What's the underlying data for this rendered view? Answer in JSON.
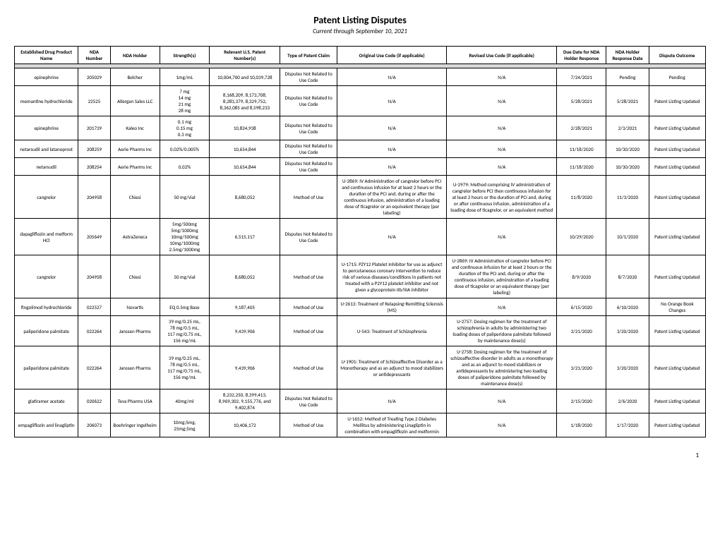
{
  "title": "Patent Listing Disputes",
  "subtitle": "Current through September 10, 2021",
  "pageNumber": "1",
  "columns": [
    "Established Drug Product Name",
    "NDA Number",
    "NDA Holder",
    "Strength(s)",
    "Relevant U.S. Patent Number(s)",
    "Type of Patent Claim",
    "Original Use Code (if applicable)",
    "Revised Use Code (if applicable)",
    "Due Date for NDA Holder Response",
    "NDA Holder Response Date",
    "Dispute Outcome"
  ],
  "rows": [
    {
      "drug": "epinephrine",
      "nda": "205029",
      "holder": "Belcher",
      "strength": "1mg/mL",
      "patent": "10,004,700 and 10,039,728",
      "claim": "Disputes Not Related to Use Code",
      "original": "N/A",
      "revised": "N/A",
      "due": "7/24/2021",
      "resp": "Pending",
      "outcome": "Pending"
    },
    {
      "drug": "memantine hydrochloride",
      "nda": "22525",
      "holder": "Allergan Sales LLC",
      "strength": "7 mg\n14 mg\n21 mg\n28 mg",
      "patent": "8,168,209, 8,173,708, 8,283,379, 8,329,752, 8,362,085 and 8,598,233",
      "claim": "Disputes Not Related to Use Code",
      "original": "N/A",
      "revised": "N/A",
      "due": "5/28/2021",
      "resp": "5/28/2021",
      "outcome": "Patent Listing Updated"
    },
    {
      "drug": "epinephrine",
      "nda": "201739",
      "holder": "Kaleo Inc",
      "strength": "0.1 mg\n0.15 mg\n0.3 mg",
      "patent": "10,824,938",
      "claim": "Disputes Not Related to Use Code",
      "original": "N/A",
      "revised": "N/A",
      "due": "2/28/2021",
      "resp": "2/3/2021",
      "outcome": "Patent Listing Updated"
    },
    {
      "drug": "netarsudil and latanoprost",
      "nda": "208259",
      "holder": "Aerie Pharms Inc",
      "strength": "0.02%/0.005%",
      "patent": "10,654,844",
      "claim": "Disputes Not Related to Use Code",
      "original": "N/A",
      "revised": "N/A",
      "due": "11/18/2020",
      "resp": "10/30/2020",
      "outcome": "Patent Listing Updated"
    },
    {
      "drug": "netarsudil",
      "nda": "208254",
      "holder": "Aerie Pharms Inc",
      "strength": "0.02%",
      "patent": "10,654,844",
      "claim": "Disputes Not Related to Use Code",
      "original": "N/A",
      "revised": "N/A",
      "due": "11/18/2020",
      "resp": "10/30/2020",
      "outcome": "Patent Listing Updated"
    },
    {
      "drug": "cangrelor",
      "nda": "204958",
      "holder": "Chiesi",
      "strength": "50 mg/vial",
      "patent": "8,680,052",
      "claim": "Method of Use",
      "original": "U-2869: IV Administration of cangrelor before PCI and continuous infusion for at least 2 hours or the duration of the PCI and, during or after the continuous infusion, administration of a loading dose of ticagrelor or an equivalent therapy (per labeling)",
      "revised": "U-2979: Method comprising IV administration of cangrelor before PCI then continuous infusion for at least 2 hours or the duration of PCI and, during or after continuous infusion, administration of a loading dose of ticagrelor, or an equivalent method",
      "due": "11/8/2020",
      "resp": "11/3/2020",
      "outcome": "Patent Listing Updated"
    },
    {
      "drug": "dapagliflozin and metform HCl",
      "nda": "205649",
      "holder": "AstraZeneca",
      "strength": "5mg/500mg\n5mg/1000mg\n10mg/500mg\n10mg/1000mg\n2.5mg/1000mg",
      "patent": "6,515,117",
      "claim": "Disputes Not Related to Use Code",
      "original": "N/A",
      "revised": "N/A",
      "due": "10/29/2020",
      "resp": "10/1/2020",
      "outcome": "Patent Listing Updated"
    },
    {
      "drug": "cangrelor",
      "nda": "204958",
      "holder": "Chiesi",
      "strength": "50 mg/vial",
      "patent": "8,680,052",
      "claim": "Method of Use",
      "original": "U-1715: PZY12 Platelet Inhibitor for use as adjunct to percutaneous coronary intervention to reduce risk of various diseases/conditions in patients not treated with a P2Y12 platelet inhibitor and not given a glycoprotein IIb/IIIA inhibitor",
      "revised": "U-2869: IV Administration of cangrelor before PCI and continuous infusion for at least 2 hours or the duration of the PCI and, during or after the continuous infusion, adminstration of a loading dose of ticagrelor or an equivalent therapy (per labeling)",
      "due": "8/9/2020",
      "resp": "8/7/2020",
      "outcome": "Patent Listing Updated"
    },
    {
      "drug": "fingolimod hydrochloride",
      "nda": "022527",
      "holder": "Novartis",
      "strength": "EQ 0.5mg Base",
      "patent": "9,187,405",
      "claim": "Method of Use",
      "original": "U-2613: Treatment of Relapsing-Remitting Sclerosis (MS)",
      "revised": "N/A",
      "due": "6/15/2020",
      "resp": "6/10/2020",
      "outcome": "No Orange Book Changes"
    },
    {
      "drug": "paliperidone palmitate",
      "nda": "022264",
      "holder": "Janssen Pharms",
      "strength": "39 mg/0.25 mL,\n78 mg/0.5 mL,\n117 mg/0.75 mL,\n156 mg/mL",
      "patent": "9,439,906",
      "claim": "Method of Use",
      "original": "U-543: Treatment of Schizophrenia",
      "revised": "U-2757: Dosing regimen for the treatment of schizophrenia in adults by administering two loading doses of paliperidone palmitate followed by maintenance dose(s)",
      "due": "3/21/2020",
      "resp": "3/20/2020",
      "outcome": "Patent Listing Updated"
    },
    {
      "drug": "paliperidone palmitate",
      "nda": "022264",
      "holder": "Janssen Pharms",
      "strength": "39 mg/0.25 mL,\n78 mg/0.5 mL,\n117 mg/0.75 mL,\n156 mg/mL",
      "patent": "9,439,906",
      "claim": "Method of Use",
      "original": "U-1901: Treatment of Schizoaffective Disorder as a Monotherapy and as an adjunct to mood stabilizers or antidepressants",
      "revised": "U-2758: Dosing regimen for the treatment of schizoaffective disorder in adults as a monotherapy and as an adjunct to mood stabilizers or antidepressants by administering two loading doses of paliperidone palmitate followed by maintenance dose(s)",
      "due": "3/21/2020",
      "resp": "3/20/2020",
      "outcome": "Patent Listing Updated"
    },
    {
      "drug": "glatiramer acetate",
      "nda": "020622",
      "holder": "Teva Pharms USA",
      "strength": "40mg/ml",
      "patent": "8,232,250, 8,399,413, 8,969,302, 9,155,776, and 9,402,874",
      "claim": "Disputes Not Related to Use Code",
      "original": "N/A",
      "revised": "N/A",
      "due": "2/15/2020",
      "resp": "2/6/2020",
      "outcome": "Patent Listing Updated"
    },
    {
      "drug": "empagliflozin and linagliptin",
      "nda": "206073",
      "holder": "Boehringer Ingelheim",
      "strength": "10mg;5mg,\n25mg;5mg",
      "patent": "10,406,172",
      "claim": "Method of Use",
      "original": "U-1652: Method of Treating Type 2 Diabetes Mellitus by administering Linagliptin in combination with empagliflozin and metformin",
      "revised": "N/A",
      "due": "1/18/2020",
      "resp": "1/17/2020",
      "outcome": "Patent Listing Updated"
    }
  ]
}
